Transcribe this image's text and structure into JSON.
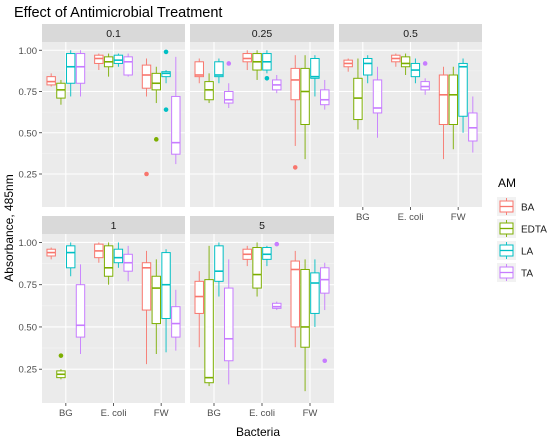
{
  "chart_data": {
    "type": "boxplot",
    "title": "Effect of Antimicrobial Treatment",
    "xlabel": "Bacteria",
    "ylabel": "Absorbance, 485nm",
    "ylim": [
      0.05,
      1.05
    ],
    "y_ticks": [
      "0.25",
      "0.50",
      "0.75",
      "1.00"
    ],
    "y_tick_values": [
      0.25,
      0.5,
      0.75,
      1.0
    ],
    "categories": [
      "BG",
      "E. coli",
      "FW"
    ],
    "grid": true,
    "legend": {
      "title": "AM",
      "position": "right",
      "entries": [
        {
          "name": "BA",
          "color": "#F8766D"
        },
        {
          "name": "EDTA",
          "color": "#7CAE00"
        },
        {
          "name": "LA",
          "color": "#00BFC4"
        },
        {
          "name": "TA",
          "color": "#C77CFF"
        }
      ]
    },
    "panels": [
      {
        "label": "0.1",
        "groups": {
          "BG": {
            "BA": {
              "min": 0.78,
              "q1": 0.79,
              "median": 0.81,
              "q3": 0.84,
              "max": 0.86,
              "outliers": []
            },
            "EDTA": {
              "min": 0.67,
              "q1": 0.71,
              "median": 0.76,
              "q3": 0.8,
              "max": 0.82,
              "outliers": []
            },
            "LA": {
              "min": 0.72,
              "q1": 0.8,
              "median": 0.9,
              "q3": 0.98,
              "max": 1.0,
              "outliers": []
            },
            "TA": {
              "min": 0.72,
              "q1": 0.8,
              "median": 0.9,
              "q3": 0.98,
              "max": 1.0,
              "outliers": []
            }
          },
          "E. coli": {
            "BA": {
              "min": 0.88,
              "q1": 0.92,
              "median": 0.95,
              "q3": 0.97,
              "max": 0.98,
              "outliers": []
            },
            "EDTA": {
              "min": 0.84,
              "q1": 0.9,
              "median": 0.93,
              "q3": 0.96,
              "max": 0.98,
              "outliers": []
            },
            "LA": {
              "min": 0.9,
              "q1": 0.92,
              "median": 0.94,
              "q3": 0.97,
              "max": 0.98,
              "outliers": []
            },
            "TA": {
              "min": 0.84,
              "q1": 0.85,
              "median": 0.93,
              "q3": 0.96,
              "max": 0.98,
              "outliers": []
            }
          },
          "FW": {
            "BA": {
              "min": 0.72,
              "q1": 0.77,
              "median": 0.85,
              "q3": 0.91,
              "max": 0.95,
              "outliers": [
                0.25
              ]
            },
            "EDTA": {
              "min": 0.68,
              "q1": 0.76,
              "median": 0.8,
              "q3": 0.86,
              "max": 0.9,
              "outliers": [
                0.46
              ]
            },
            "LA": {
              "min": 0.8,
              "q1": 0.84,
              "median": 0.86,
              "q3": 0.87,
              "max": 0.88,
              "outliers": [
                0.64,
                0.99
              ]
            },
            "TA": {
              "min": 0.31,
              "q1": 0.37,
              "median": 0.44,
              "q3": 0.72,
              "max": 0.96,
              "outliers": []
            }
          }
        }
      },
      {
        "label": "0.25",
        "groups": {
          "BG": {
            "BA": {
              "min": 0.8,
              "q1": 0.84,
              "median": 0.85,
              "q3": 0.93,
              "max": 0.95,
              "outliers": []
            },
            "EDTA": {
              "min": 0.68,
              "q1": 0.7,
              "median": 0.76,
              "q3": 0.81,
              "max": 0.86,
              "outliers": []
            },
            "LA": {
              "min": 0.8,
              "q1": 0.84,
              "median": 0.85,
              "q3": 0.93,
              "max": 0.95,
              "outliers": []
            },
            "TA": {
              "min": 0.65,
              "q1": 0.68,
              "median": 0.7,
              "q3": 0.75,
              "max": 0.8,
              "outliers": [
                0.92
              ]
            }
          },
          "E. coli": {
            "BA": {
              "min": 0.88,
              "q1": 0.93,
              "median": 0.95,
              "q3": 0.98,
              "max": 1.0,
              "outliers": []
            },
            "EDTA": {
              "min": 0.82,
              "q1": 0.88,
              "median": 0.93,
              "q3": 0.98,
              "max": 1.0,
              "outliers": []
            },
            "LA": {
              "min": 0.86,
              "q1": 0.88,
              "median": 0.93,
              "q3": 0.98,
              "max": 1.0,
              "outliers": [
                0.83
              ]
            },
            "TA": {
              "min": 0.74,
              "q1": 0.76,
              "median": 0.79,
              "q3": 0.82,
              "max": 0.85,
              "outliers": []
            }
          },
          "FW": {
            "BA": {
              "min": 0.42,
              "q1": 0.7,
              "median": 0.82,
              "q3": 0.89,
              "max": 0.97,
              "outliers": [
                0.29
              ]
            },
            "EDTA": {
              "min": 0.34,
              "q1": 0.55,
              "median": 0.75,
              "q3": 0.89,
              "max": 0.97,
              "outliers": []
            },
            "LA": {
              "min": 0.72,
              "q1": 0.83,
              "median": 0.84,
              "q3": 0.95,
              "max": 0.97,
              "outliers": []
            },
            "TA": {
              "min": 0.64,
              "q1": 0.67,
              "median": 0.7,
              "q3": 0.76,
              "max": 0.82,
              "outliers": []
            }
          }
        }
      },
      {
        "label": "0.5",
        "groups": {
          "BG": {
            "BA": {
              "min": 0.87,
              "q1": 0.9,
              "median": 0.92,
              "q3": 0.94,
              "max": 0.95,
              "outliers": []
            },
            "EDTA": {
              "min": 0.52,
              "q1": 0.58,
              "median": 0.71,
              "q3": 0.83,
              "max": 0.95,
              "outliers": []
            },
            "LA": {
              "min": 0.8,
              "q1": 0.85,
              "median": 0.92,
              "q3": 0.95,
              "max": 0.97,
              "outliers": []
            },
            "TA": {
              "min": 0.47,
              "q1": 0.62,
              "median": 0.65,
              "q3": 0.82,
              "max": 0.9,
              "outliers": []
            }
          },
          "E. coli": {
            "BA": {
              "min": 0.9,
              "q1": 0.93,
              "median": 0.95,
              "q3": 0.97,
              "max": 0.98,
              "outliers": []
            },
            "EDTA": {
              "min": 0.85,
              "q1": 0.9,
              "median": 0.92,
              "q3": 0.96,
              "max": 0.98,
              "outliers": []
            },
            "LA": {
              "min": 0.8,
              "q1": 0.84,
              "median": 0.88,
              "q3": 0.92,
              "max": 0.95,
              "outliers": []
            },
            "TA": {
              "min": 0.73,
              "q1": 0.76,
              "median": 0.78,
              "q3": 0.81,
              "max": 0.83,
              "outliers": [
                0.92
              ]
            }
          },
          "FW": {
            "BA": {
              "min": 0.34,
              "q1": 0.55,
              "median": 0.73,
              "q3": 0.85,
              "max": 0.9,
              "outliers": []
            },
            "EDTA": {
              "min": 0.4,
              "q1": 0.55,
              "median": 0.73,
              "q3": 0.85,
              "max": 0.9,
              "outliers": []
            },
            "LA": {
              "min": 0.5,
              "q1": 0.6,
              "median": 0.9,
              "q3": 0.92,
              "max": 0.95,
              "outliers": []
            },
            "TA": {
              "min": 0.38,
              "q1": 0.45,
              "median": 0.53,
              "q3": 0.62,
              "max": 0.72,
              "outliers": []
            }
          }
        }
      },
      {
        "label": "1",
        "groups": {
          "BG": {
            "BA": {
              "min": 0.9,
              "q1": 0.92,
              "median": 0.94,
              "q3": 0.96,
              "max": 0.97,
              "outliers": []
            },
            "EDTA": {
              "min": 0.19,
              "q1": 0.2,
              "median": 0.22,
              "q3": 0.24,
              "max": 0.25,
              "outliers": [
                0.33
              ]
            },
            "LA": {
              "min": 0.8,
              "q1": 0.85,
              "median": 0.94,
              "q3": 0.98,
              "max": 1.0,
              "outliers": []
            },
            "TA": {
              "min": 0.34,
              "q1": 0.44,
              "median": 0.51,
              "q3": 0.75,
              "max": 0.87,
              "outliers": []
            }
          },
          "E. coli": {
            "BA": {
              "min": 0.88,
              "q1": 0.91,
              "median": 0.95,
              "q3": 0.99,
              "max": 1.0,
              "outliers": []
            },
            "EDTA": {
              "min": 0.75,
              "q1": 0.8,
              "median": 0.85,
              "q3": 0.98,
              "max": 1.0,
              "outliers": []
            },
            "LA": {
              "min": 0.85,
              "q1": 0.88,
              "median": 0.91,
              "q3": 0.96,
              "max": 1.0,
              "outliers": []
            },
            "TA": {
              "min": 0.77,
              "q1": 0.83,
              "median": 0.88,
              "q3": 0.93,
              "max": 0.98,
              "outliers": []
            }
          },
          "FW": {
            "BA": {
              "min": 0.28,
              "q1": 0.6,
              "median": 0.85,
              "q3": 0.88,
              "max": 0.95,
              "outliers": []
            },
            "EDTA": {
              "min": 0.34,
              "q1": 0.52,
              "median": 0.73,
              "q3": 0.8,
              "max": 0.9,
              "outliers": []
            },
            "LA": {
              "min": 0.35,
              "q1": 0.55,
              "median": 0.75,
              "q3": 0.94,
              "max": 0.96,
              "outliers": []
            },
            "TA": {
              "min": 0.36,
              "q1": 0.44,
              "median": 0.52,
              "q3": 0.62,
              "max": 0.72,
              "outliers": []
            }
          }
        }
      },
      {
        "label": "5",
        "groups": {
          "BG": {
            "BA": {
              "min": 0.38,
              "q1": 0.58,
              "median": 0.68,
              "q3": 0.77,
              "max": 0.83,
              "outliers": []
            },
            "EDTA": {
              "min": 0.15,
              "q1": 0.17,
              "median": 0.2,
              "q3": 0.78,
              "max": 0.98,
              "outliers": []
            },
            "LA": {
              "min": 0.68,
              "q1": 0.77,
              "median": 0.83,
              "q3": 0.98,
              "max": 1.0,
              "outliers": []
            },
            "TA": {
              "min": 0.16,
              "q1": 0.3,
              "median": 0.43,
              "q3": 0.73,
              "max": 0.9,
              "outliers": []
            }
          },
          "E. coli": {
            "BA": {
              "min": 0.86,
              "q1": 0.9,
              "median": 0.93,
              "q3": 0.96,
              "max": 0.98,
              "outliers": []
            },
            "EDTA": {
              "min": 0.68,
              "q1": 0.73,
              "median": 0.81,
              "q3": 0.97,
              "max": 1.0,
              "outliers": []
            },
            "LA": {
              "min": 0.86,
              "q1": 0.9,
              "median": 0.93,
              "q3": 0.97,
              "max": 0.98,
              "outliers": []
            },
            "TA": {
              "min": 0.6,
              "q1": 0.61,
              "median": 0.62,
              "q3": 0.64,
              "max": 0.65,
              "outliers": [
                0.99
              ]
            }
          },
          "FW": {
            "BA": {
              "min": 0.38,
              "q1": 0.5,
              "median": 0.84,
              "q3": 0.89,
              "max": 0.95,
              "outliers": []
            },
            "EDTA": {
              "min": 0.12,
              "q1": 0.38,
              "median": 0.5,
              "q3": 0.84,
              "max": 0.9,
              "outliers": []
            },
            "LA": {
              "min": 0.5,
              "q1": 0.58,
              "median": 0.76,
              "q3": 0.82,
              "max": 0.9,
              "outliers": []
            },
            "TA": {
              "min": 0.6,
              "q1": 0.7,
              "median": 0.78,
              "q3": 0.85,
              "max": 0.88,
              "outliers": [
                0.3
              ]
            }
          }
        }
      }
    ]
  }
}
